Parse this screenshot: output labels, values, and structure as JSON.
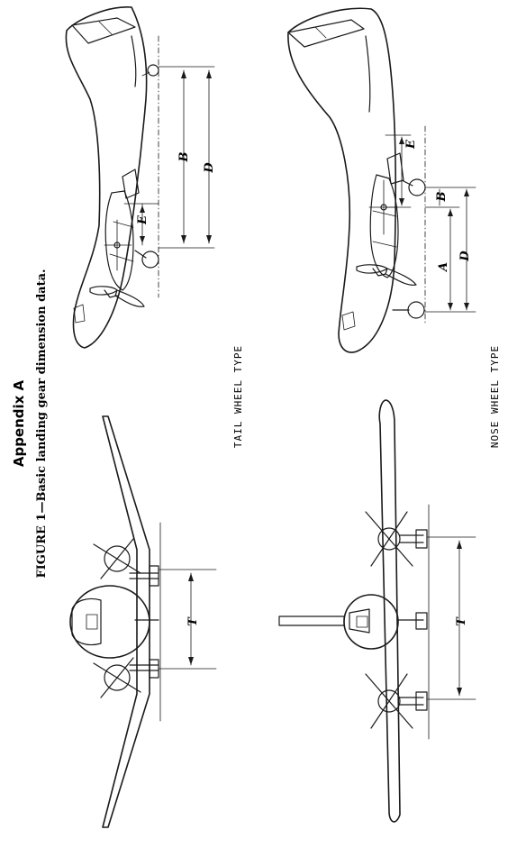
{
  "appendix_title": "Appendix A",
  "figure_caption": "FIGURE 1—Basic landing gear dimension data.",
  "type_labels": {
    "tail_wheel": "TAIL WHEEL TYPE",
    "nose_wheel": "NOSE WHEEL TYPE"
  },
  "dimension_labels": {
    "tail_B": "B",
    "tail_D": "D",
    "tail_E": "E",
    "tail_T": "T",
    "nose_E": "E",
    "nose_B": "B",
    "nose_A": "A",
    "nose_D": "D",
    "nose_T": "T"
  }
}
